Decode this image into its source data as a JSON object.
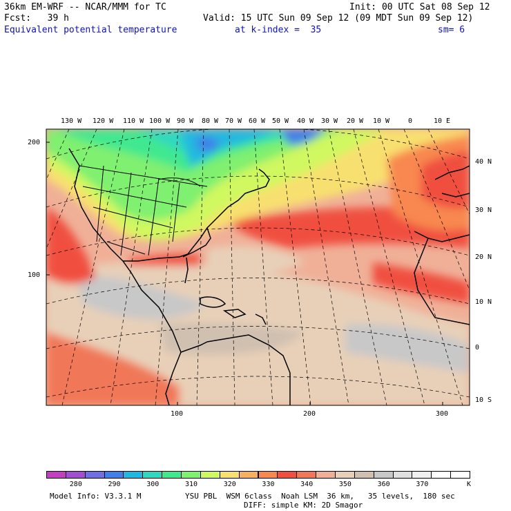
{
  "header": {
    "model": "36km EM-WRF -- NCAR/MMM for TC",
    "init": "Init: 00 UTC Sat 08 Sep 12",
    "fcst": "Fcst:   39 h",
    "valid": "Valid: 15 UTC Sun 09 Sep 12 (09 MDT Sun 09 Sep 12)",
    "field": "Equivalent potential temperature",
    "level": "at k-index =  35",
    "smoothing": "sm= 6"
  },
  "axes": {
    "lon_labels": [
      "130 W",
      "120 W",
      "110 W",
      "100 W",
      "90 W",
      "80 W",
      "70 W",
      "60 W",
      "50 W",
      "40 W",
      "30 W",
      "20 W",
      "10 W",
      "0",
      "10 E"
    ],
    "lat_labels": [
      "40 N",
      "30 N",
      "20 N",
      "10 N",
      "0",
      "10 S"
    ],
    "grid_y_labels": [
      "200",
      "100"
    ],
    "grid_x_labels": [
      "100",
      "200",
      "300"
    ]
  },
  "colorbar": {
    "colors": [
      "#c040c0",
      "#a050d0",
      "#7070e0",
      "#4080e8",
      "#20b8e0",
      "#30d8c0",
      "#40e890",
      "#80f070",
      "#d0f860",
      "#f8e070",
      "#f8b060",
      "#f88850",
      "#f05040",
      "#f07858",
      "#f0b098",
      "#e8d0b8",
      "#d0c0b0",
      "#c8c8c8",
      "#e0e0e0",
      "#f0f0f0",
      "#ffffff",
      "#ffffff"
    ],
    "tick_labels": [
      "280",
      "290",
      "300",
      "310",
      "320",
      "330",
      "340",
      "350",
      "360",
      "370"
    ],
    "unit": "K"
  },
  "footer": {
    "info": "Model Info: V3.3.1 M",
    "physics1": "YSU PBL  WSM 6class  Noah LSM  36 km,   35 levels,  180 sec",
    "physics2": "DIFF: simple KM: 2D Smagor"
  },
  "colors": {
    "field_text": "#1010c0",
    "land_outline": "#000000"
  }
}
